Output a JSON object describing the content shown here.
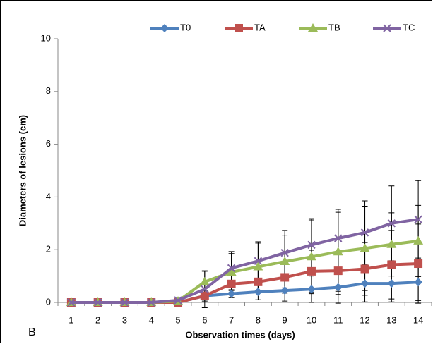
{
  "chart_data": {
    "type": "line",
    "x_label": "Observation times (days)",
    "y_label": "Diameters of lesions (cm)",
    "panel_label": "B",
    "categories": [
      "1",
      "2",
      "3",
      "4",
      "5",
      "6",
      "7",
      "8",
      "9",
      "10",
      "11",
      "12",
      "13",
      "14"
    ],
    "ylim": [
      0,
      10
    ],
    "yticks": [
      0,
      2,
      4,
      6,
      8,
      10
    ],
    "legend": "top",
    "series": [
      {
        "name": "T0",
        "color": "#4f81bd",
        "marker": "diamond",
        "values": [
          0,
          0,
          0,
          0,
          0,
          0.25,
          0.33,
          0.4,
          0.45,
          0.5,
          0.57,
          0.72,
          0.72,
          0.77
        ],
        "errors": [
          0,
          0,
          0,
          0,
          0,
          0.1,
          0.15,
          0.3,
          0.4,
          0.5,
          0.6,
          0.7,
          0.7,
          0.7
        ]
      },
      {
        "name": "TA",
        "color": "#c0504d",
        "marker": "square",
        "values": [
          0,
          0,
          0,
          0,
          0,
          0.25,
          0.7,
          0.78,
          0.95,
          1.18,
          1.2,
          1.27,
          1.43,
          1.47
        ],
        "errors": [
          0,
          0,
          0,
          0,
          0,
          0.2,
          0.4,
          0.5,
          0.6,
          0.8,
          0.9,
          1.0,
          1.3,
          1.5
        ]
      },
      {
        "name": "TB",
        "color": "#9bbb59",
        "marker": "triangle",
        "values": [
          0,
          0,
          0,
          0,
          0.05,
          0.78,
          1.15,
          1.35,
          1.55,
          1.73,
          1.92,
          2.05,
          2.2,
          2.33
        ],
        "errors": [
          0,
          0,
          0,
          0,
          0,
          0.4,
          0.7,
          0.9,
          1.0,
          1.4,
          1.5,
          1.6,
          1.2,
          1.35
        ]
      },
      {
        "name": "TC",
        "color": "#8064a2",
        "marker": "cross",
        "values": [
          0,
          0,
          0,
          0,
          0.08,
          0.5,
          1.3,
          1.57,
          1.88,
          2.18,
          2.43,
          2.65,
          3.0,
          3.15
        ],
        "errors": [
          0,
          0,
          0,
          0,
          0,
          0.7,
          0.63,
          0.73,
          0.85,
          1.0,
          1.1,
          1.2,
          1.42,
          1.47
        ]
      }
    ]
  }
}
